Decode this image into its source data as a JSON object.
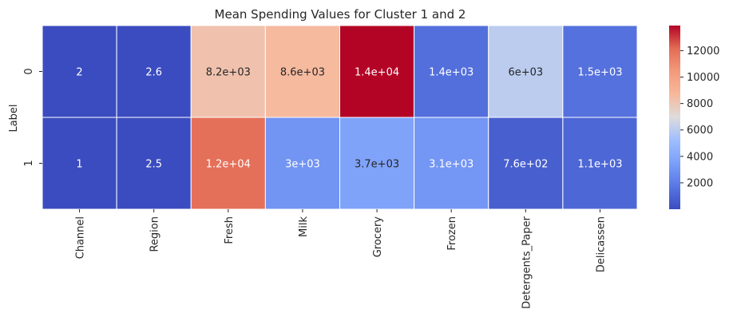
{
  "chart_data": {
    "type": "heatmap",
    "title": "Mean Spending Values for Cluster 1 and 2",
    "xlabel": "",
    "ylabel": "Label",
    "x_categories": [
      "Channel",
      "Region",
      "Fresh",
      "Milk",
      "Grocery",
      "Frozen",
      "Detergents_Paper",
      "Delicassen"
    ],
    "y_categories": [
      "0",
      "1"
    ],
    "values": [
      [
        2,
        2.6,
        8200,
        8600,
        14000,
        1400,
        6000,
        1500
      ],
      [
        1,
        2.5,
        12000,
        3000,
        3700,
        3100,
        760,
        1100
      ]
    ],
    "annotations": [
      [
        "2",
        "2.6",
        "8.2e+03",
        "8.6e+03",
        "1.4e+04",
        "1.4e+03",
        "6e+03",
        "1.5e+03"
      ],
      [
        "1",
        "2.5",
        "1.2e+04",
        "3e+03",
        "3.7e+03",
        "3.1e+03",
        "7.6e+02",
        "1.1e+03"
      ]
    ],
    "colormap": "coolwarm",
    "color_range": [
      1,
      13900
    ],
    "colorbar_ticks": [
      "2000",
      "4000",
      "6000",
      "8000",
      "10000",
      "12000"
    ],
    "colorbar_tick_values": [
      2000,
      4000,
      6000,
      8000,
      10000,
      12000
    ],
    "cell_border_color": "#ffffff",
    "grid": false
  }
}
